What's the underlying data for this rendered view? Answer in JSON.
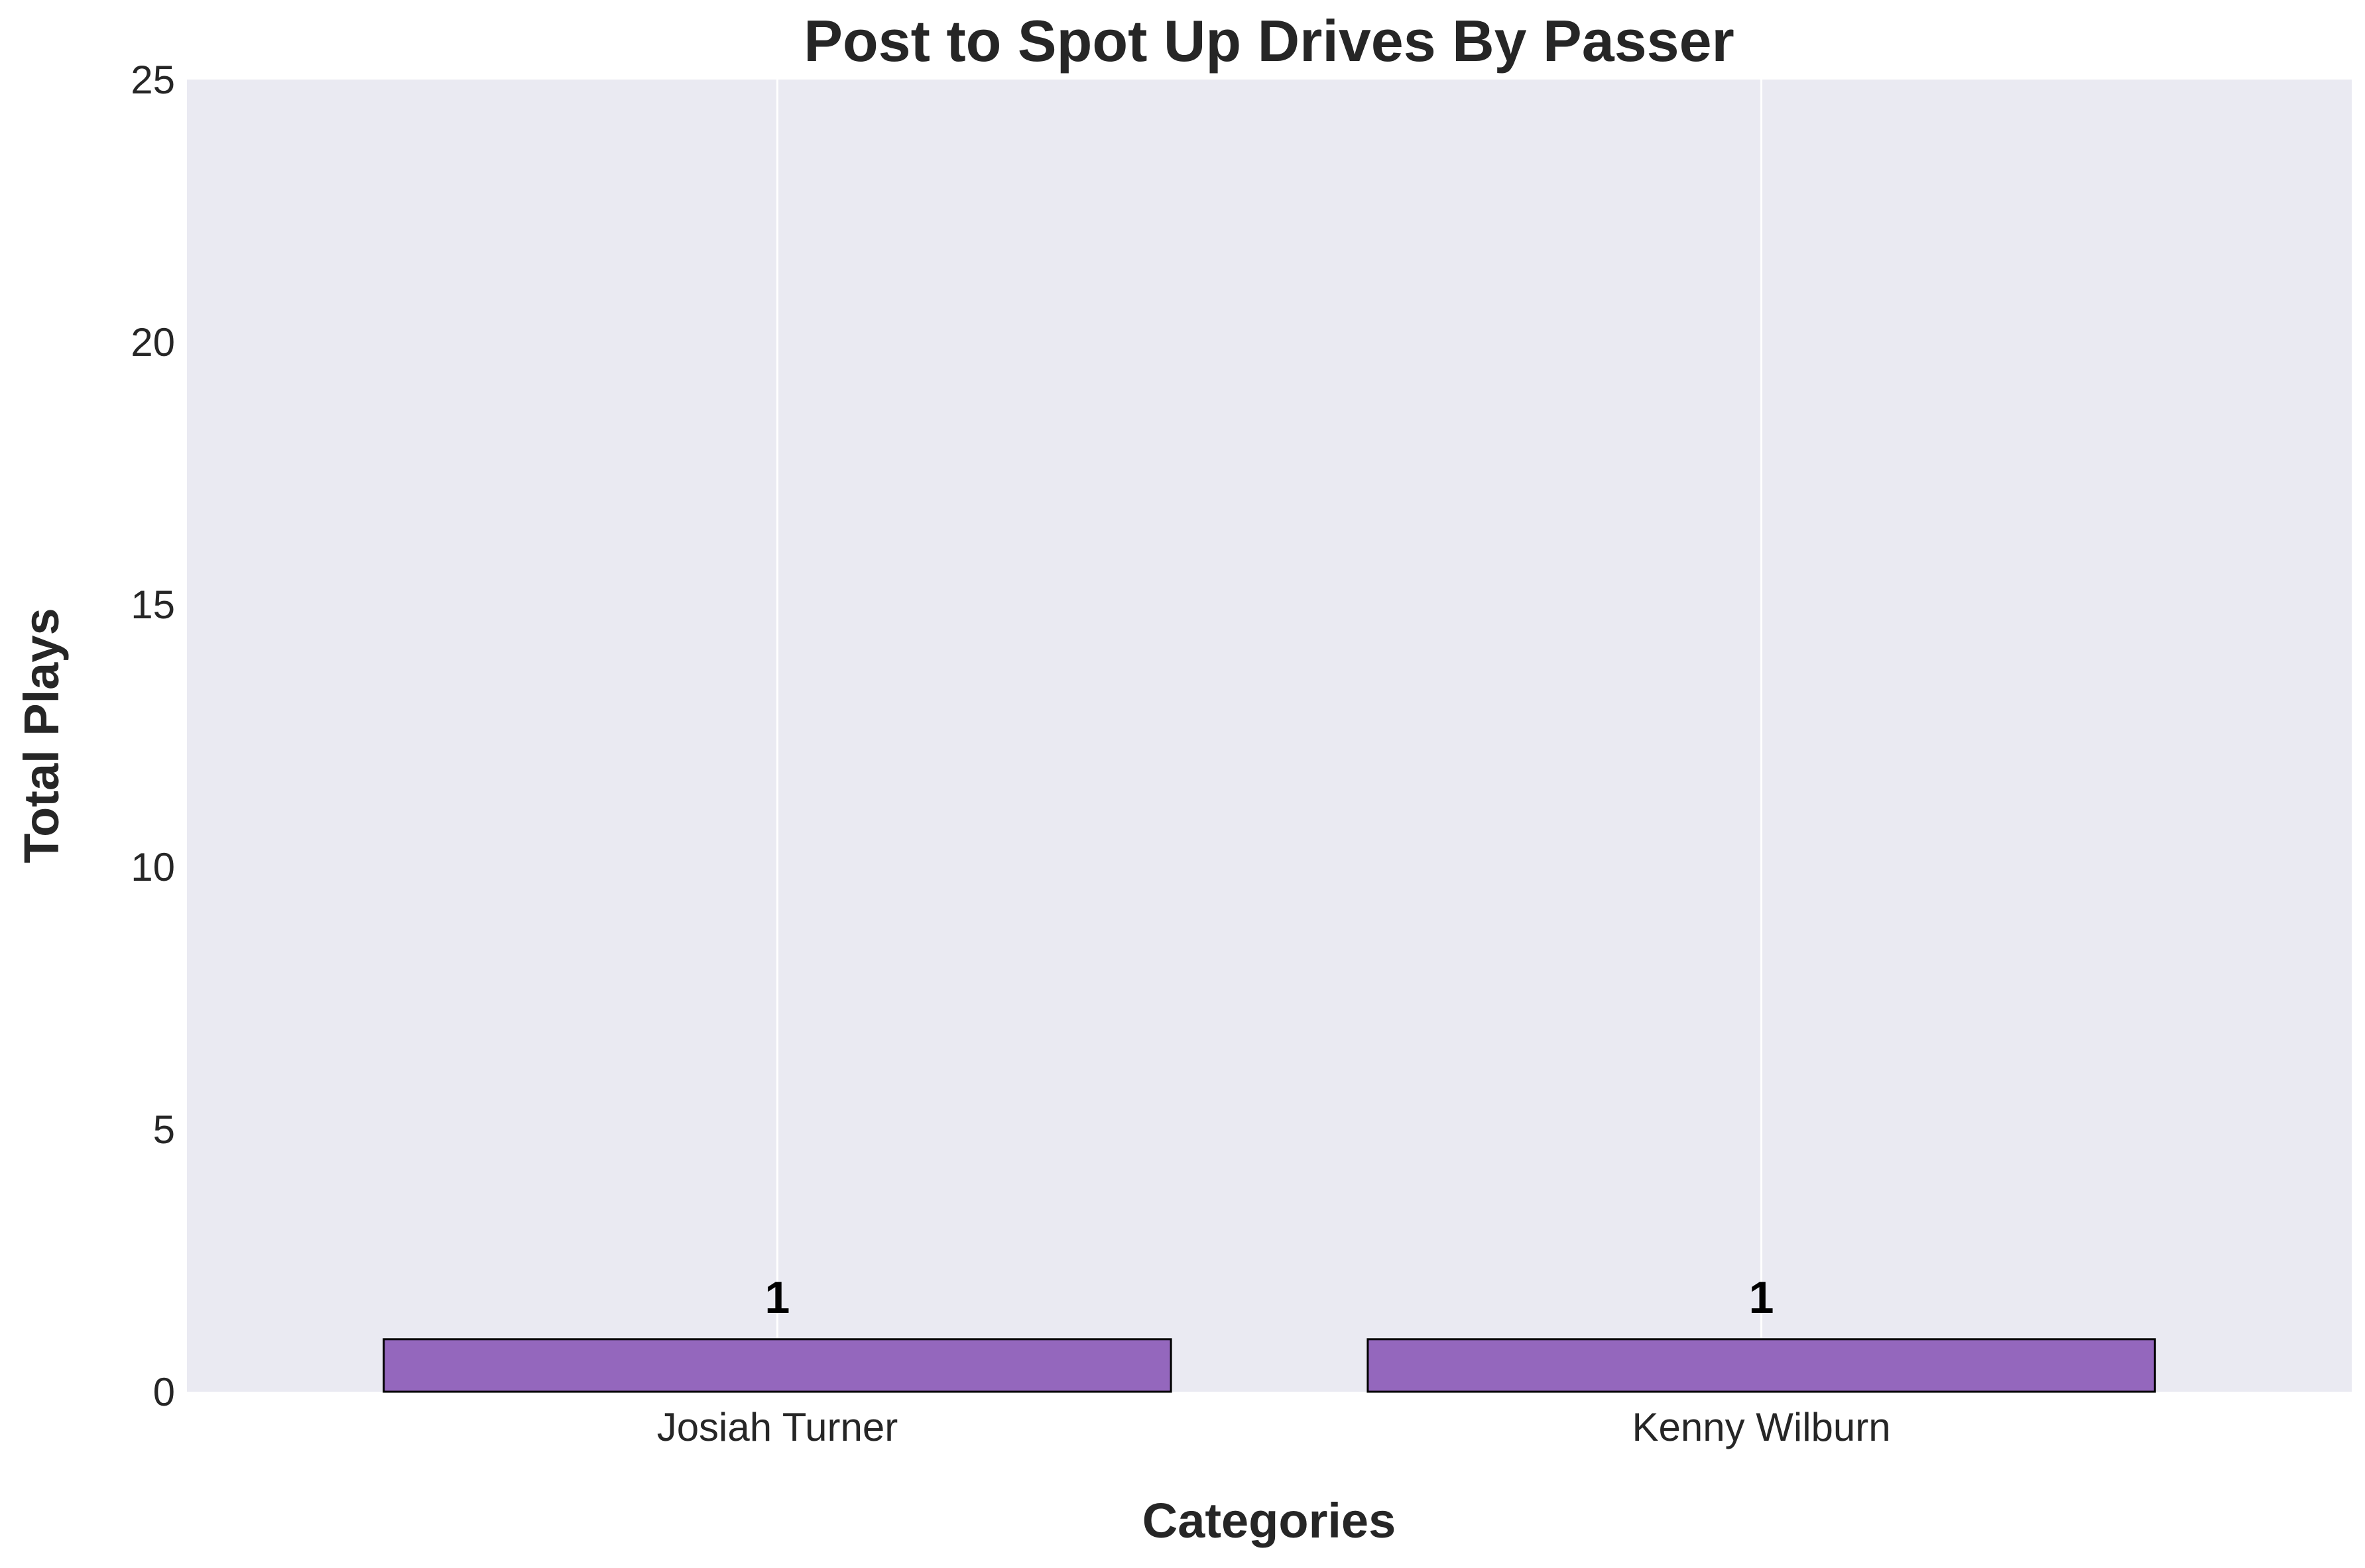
{
  "colors": {
    "plot_background": "#eaeaf2",
    "bar_fill": "#9467bd",
    "bar_edge": "#000000",
    "grid": "#ffffff",
    "text": "#262626"
  },
  "chart_data": {
    "type": "bar",
    "title": "Post to Spot Up Drives By Passer",
    "xlabel": "Categories",
    "ylabel": "Total Plays",
    "categories": [
      "Josiah Turner",
      "Kenny Wilburn"
    ],
    "values": [
      1,
      1
    ],
    "data_labels": [
      "1",
      "1"
    ],
    "ylim": [
      0,
      25
    ],
    "yticks": [
      0,
      5,
      10,
      15,
      20,
      25
    ],
    "ytick_labels": [
      "0",
      "5",
      "10",
      "15",
      "20",
      "25"
    ],
    "grid": "vertical",
    "legend": "none"
  }
}
